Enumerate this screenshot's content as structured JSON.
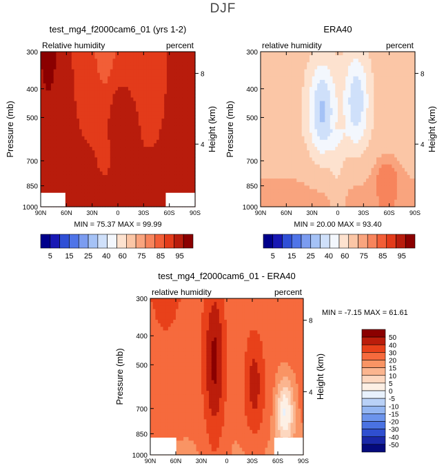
{
  "page_title": "DJF",
  "chart_data": [
    {
      "type": "heatmap",
      "title": "test_mg4_f2000cam6_01 (yrs 1-2)",
      "variable_label": "Relative humidity",
      "units_label": "percent",
      "ylabel": "Pressure (mb)",
      "ylabel_right": "Height (km)",
      "x_ticks": [
        "90N",
        "60N",
        "30N",
        "0",
        "30S",
        "60S",
        "90S"
      ],
      "y_ticks": [
        "300",
        "400",
        "500",
        "700",
        "850",
        "1000"
      ],
      "right_ticks": [
        "8",
        "4"
      ],
      "stats": {
        "min_label": "MIN =",
        "min": "75.37",
        "max_label": "MAX =",
        "max": "99.99"
      },
      "colorbar_labels": [
        "5",
        "15",
        "25",
        "40",
        "60",
        "75",
        "85",
        "95"
      ],
      "x": [
        -90,
        -60,
        -30,
        0,
        30,
        60,
        90
      ],
      "y": [
        300,
        400,
        500,
        700,
        850,
        1000
      ]
    },
    {
      "type": "heatmap",
      "title": "ERA40",
      "variable_label": "relative humidity",
      "units_label": "percent",
      "ylabel": "Pressure (mb)",
      "ylabel_right": "Height (km)",
      "x_ticks": [
        "90N",
        "60N",
        "30N",
        "0",
        "30S",
        "60S",
        "90S"
      ],
      "y_ticks": [
        "300",
        "400",
        "500",
        "700",
        "850",
        "1000"
      ],
      "right_ticks": [
        "8",
        "4"
      ],
      "stats": {
        "min_label": "MIN =",
        "min": "20.00",
        "max_label": "MAX =",
        "max": "93.40"
      },
      "colorbar_labels": [
        "5",
        "15",
        "25",
        "40",
        "60",
        "75",
        "85",
        "95"
      ],
      "x": [
        -90,
        -60,
        -30,
        0,
        30,
        60,
        90
      ],
      "y": [
        300,
        400,
        500,
        700,
        850,
        1000
      ]
    },
    {
      "type": "heatmap",
      "title": "test_mg4_f2000cam6_01 - ERA40",
      "variable_label": "relative humidity",
      "units_label": "percent",
      "ylabel": "Pressure (mb)",
      "ylabel_right": "Height (km)",
      "x_ticks": [
        "90N",
        "60N",
        "30N",
        "0",
        "30S",
        "60S",
        "90S"
      ],
      "y_ticks": [
        "300",
        "400",
        "500",
        "700",
        "850",
        "1000"
      ],
      "right_ticks": [
        "8",
        "4"
      ],
      "stats": {
        "min_label": "MIN =",
        "min": "-7.15",
        "max_label": "MAX =",
        "max": "61.61"
      },
      "colorbar_labels": [
        "50",
        "40",
        "30",
        "20",
        "15",
        "10",
        "5",
        "0",
        "-5",
        "-10",
        "-15",
        "-20",
        "-30",
        "-40",
        "-50"
      ],
      "x": [
        -90,
        -60,
        -30,
        0,
        30,
        60,
        90
      ],
      "y": [
        300,
        400,
        500,
        700,
        850,
        1000
      ]
    }
  ],
  "abs_colors": [
    "#00008b",
    "#1818b4",
    "#2f4fd6",
    "#4f74e8",
    "#7b9cf0",
    "#a5c2f6",
    "#cfe0fa",
    "#f3f7fd",
    "#fde2cf",
    "#fbc6a6",
    "#f9a47e",
    "#f7845c",
    "#f25e37",
    "#e33b1a",
    "#b81c0c",
    "#8b0000"
  ],
  "diff_colors": [
    "#8b0000",
    "#bb1d0b",
    "#e8411a",
    "#f66a3d",
    "#f99464",
    "#fbb58f",
    "#fdd7bf",
    "#fdf0e5",
    "#e8f1fc",
    "#b9d1f7",
    "#94b6f2",
    "#6c94ec",
    "#4a72e2",
    "#2f4fd0",
    "#1a28a8",
    "#050a7c"
  ]
}
